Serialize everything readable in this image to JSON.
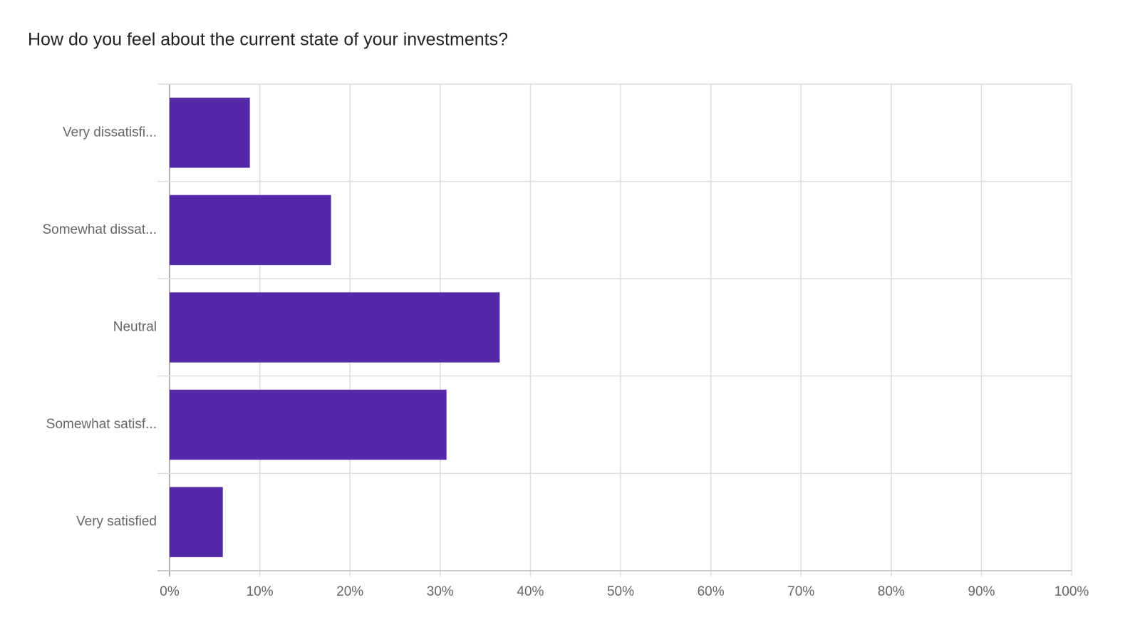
{
  "chart_data": {
    "type": "hbar",
    "title": "How do you feel about the current state of your investments?",
    "categories": [
      "Very dissatisfi...",
      "Somewhat dissat...",
      "Neutral",
      "Somewhat satisf...",
      "Very satisfied"
    ],
    "values": [
      8.9,
      17.9,
      36.6,
      30.7,
      5.9
    ],
    "color": "#5429a8",
    "xlim": [
      0,
      100
    ],
    "xticks": [
      {
        "value": 0,
        "label": "0%"
      },
      {
        "value": 10,
        "label": "10%"
      },
      {
        "value": 20,
        "label": "20%"
      },
      {
        "value": 30,
        "label": "30%"
      },
      {
        "value": 40,
        "label": "40%"
      },
      {
        "value": 50,
        "label": "50%"
      },
      {
        "value": 60,
        "label": "60%"
      },
      {
        "value": 70,
        "label": "70%"
      },
      {
        "value": 80,
        "label": "80%"
      },
      {
        "value": 90,
        "label": "90%"
      },
      {
        "value": 100,
        "label": "100%"
      }
    ],
    "grid": true
  }
}
